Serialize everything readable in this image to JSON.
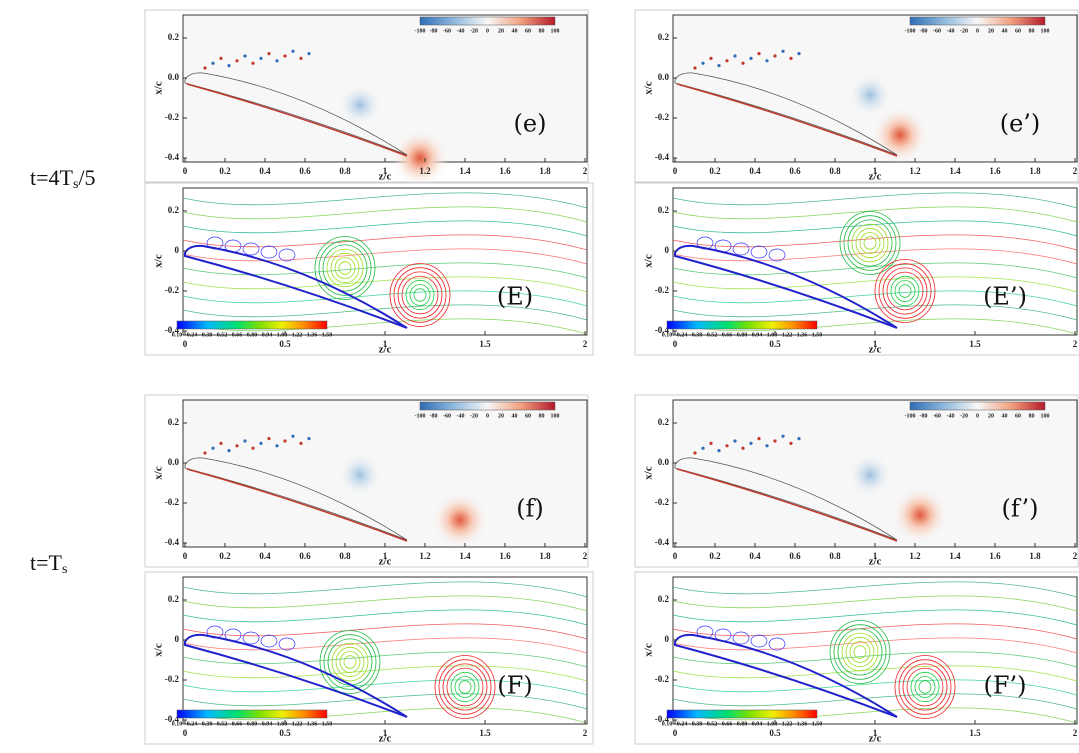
{
  "rows": [
    {
      "time": {
        "base": "t=4T",
        "sub": "s",
        "tail": "/5"
      }
    },
    {
      "time": {
        "base": "t=T",
        "sub": "s"
      }
    }
  ],
  "vorticity_plot": {
    "x_label": "z/c",
    "y_label": "x/c",
    "xticks": [
      "0",
      "0.2",
      "0.4",
      "0.6",
      "0.8",
      "1",
      "1.2",
      "1.4",
      "1.6",
      "1.8",
      "2"
    ],
    "yticks": [
      "0.2",
      "0.0",
      "-0.2",
      "-0.4"
    ],
    "colorbar_ticks": [
      "-100",
      "-80",
      "-60",
      "-40",
      "-20",
      "0",
      "20",
      "40",
      "60",
      "80",
      "100"
    ]
  },
  "streamline_plot": {
    "x_label": "z/c",
    "y_label": "x/c",
    "xticks": [
      "0",
      "0.5",
      "1",
      "1.5",
      "2"
    ],
    "yticks": [
      "0.2",
      "0",
      "-0.2",
      "-0.4"
    ],
    "colorbar_ticks": [
      "0.10",
      "0.24",
      "0.38",
      "0.52",
      "0.66",
      "0.80",
      "0.94",
      "1.08",
      "1.22",
      "1.36",
      "1.50"
    ]
  },
  "panels": [
    {
      "label": "(e)",
      "kind": "vorticity"
    },
    {
      "label": "(e’)",
      "kind": "vorticity"
    },
    {
      "label": "(E)",
      "kind": "streamline"
    },
    {
      "label": "(E’)",
      "kind": "streamline"
    },
    {
      "label": "(f)",
      "kind": "vorticity"
    },
    {
      "label": "(f’)",
      "kind": "vorticity"
    },
    {
      "label": "(F)",
      "kind": "streamline"
    },
    {
      "label": "(F’)",
      "kind": "streamline"
    }
  ]
}
